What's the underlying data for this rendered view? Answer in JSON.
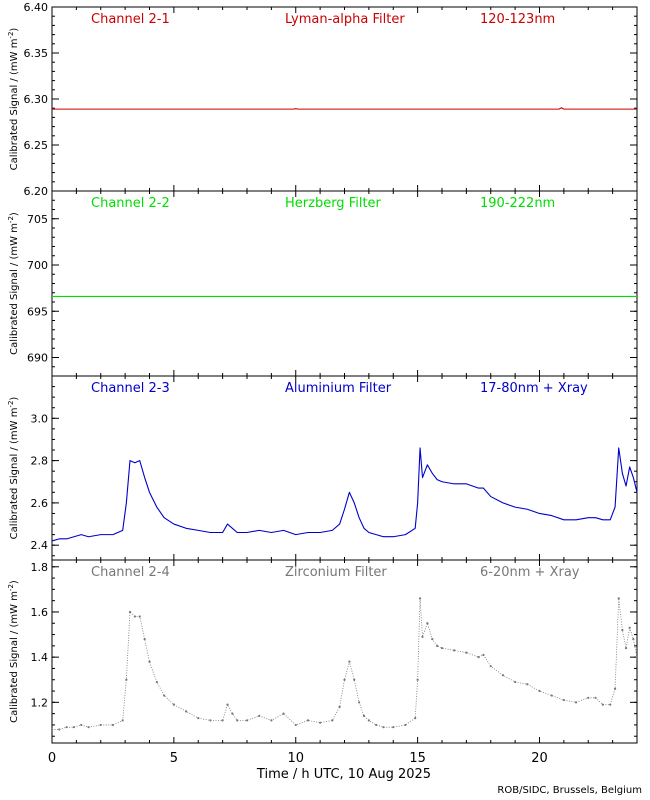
{
  "footer": {
    "credit": "ROB/SIDC, Brussels, Belgium"
  },
  "x_axis": {
    "label": "Time / h UTC, 10 Aug 2025",
    "range": [
      0,
      24
    ],
    "major_ticks": [
      0,
      5,
      10,
      15,
      20
    ],
    "tick_labels": [
      "0",
      "5",
      "10",
      "15",
      "20"
    ]
  },
  "colors": {
    "channel_2_1": "#cc0000",
    "channel_2_2": "#00dd00",
    "channel_2_3": "#0000cc",
    "channel_2_4": "#777777",
    "axes": "#000000"
  },
  "chart_data": [
    {
      "type": "line",
      "channel": "Channel 2-1",
      "filter": "Lyman-alpha Filter",
      "band": "120-123nm",
      "ylabel": "Calibrated Signal / (mW m",
      "ylabel_exp": "-2",
      "ylabel_close": ")",
      "ylim": [
        6.2,
        6.4
      ],
      "yticks": [
        6.2,
        6.25,
        6.3,
        6.35,
        6.4
      ],
      "ytick_labels": [
        "6.20",
        "6.25",
        "6.30",
        "6.35",
        "6.40"
      ],
      "minor_step": 0.01,
      "color": "#cc0000",
      "series": [
        {
          "x": [
            0,
            3,
            6,
            8,
            9.9,
            10,
            10.1,
            12,
            15,
            18,
            20.8,
            20.9,
            21,
            22,
            24
          ],
          "y": [
            6.289,
            6.289,
            6.289,
            6.289,
            6.289,
            6.2895,
            6.289,
            6.289,
            6.289,
            6.289,
            6.289,
            6.2905,
            6.289,
            6.289,
            6.289
          ]
        }
      ]
    },
    {
      "type": "line",
      "channel": "Channel 2-2",
      "filter": "Herzberg Filter",
      "band": "190-222nm",
      "ylabel": "Calibrated Signal / (mW m",
      "ylabel_exp": "-2",
      "ylabel_close": ")",
      "ylim": [
        688,
        708
      ],
      "yticks": [
        690,
        695,
        700,
        705
      ],
      "ytick_labels": [
        "690",
        "695",
        "700",
        "705"
      ],
      "minor_step": 1,
      "color": "#00dd00",
      "series": [
        {
          "x": [
            0,
            4,
            8,
            12,
            16,
            20,
            24
          ],
          "y": [
            696.6,
            696.6,
            696.6,
            696.6,
            696.6,
            696.6,
            696.6
          ]
        }
      ]
    },
    {
      "type": "line",
      "channel": "Channel 2-3",
      "filter": "Aluminium Filter",
      "band": "17-80nm + Xray",
      "ylabel": "Calibrated Signal / (mW m",
      "ylabel_exp": "-2",
      "ylabel_close": ")",
      "ylim": [
        2.33,
        3.2
      ],
      "yticks": [
        2.4,
        2.6,
        2.8,
        3.0
      ],
      "ytick_labels": [
        "2.4",
        "2.6",
        "2.8",
        "3.0"
      ],
      "minor_step": 0.05,
      "color": "#0000cc",
      "series": [
        {
          "x": [
            0,
            0.3,
            0.6,
            0.9,
            1.2,
            1.5,
            2.0,
            2.5,
            2.9,
            3.05,
            3.2,
            3.4,
            3.6,
            3.8,
            4.0,
            4.3,
            4.6,
            5.0,
            5.5,
            6.0,
            6.5,
            7.0,
            7.2,
            7.4,
            7.6,
            8.0,
            8.5,
            9.0,
            9.5,
            10.0,
            10.5,
            11.0,
            11.5,
            11.8,
            12.0,
            12.2,
            12.4,
            12.6,
            12.8,
            13.0,
            13.3,
            13.6,
            14.0,
            14.5,
            14.9,
            15.0,
            15.1,
            15.2,
            15.4,
            15.6,
            15.8,
            16.0,
            16.5,
            17.0,
            17.5,
            17.7,
            18.0,
            18.5,
            19.0,
            19.5,
            20.0,
            20.5,
            21.0,
            21.5,
            22.0,
            22.3,
            22.6,
            22.9,
            23.1,
            23.25,
            23.4,
            23.55,
            23.7,
            23.85,
            24.0
          ],
          "y": [
            2.42,
            2.43,
            2.43,
            2.44,
            2.45,
            2.44,
            2.45,
            2.45,
            2.47,
            2.6,
            2.8,
            2.79,
            2.8,
            2.72,
            2.65,
            2.58,
            2.53,
            2.5,
            2.48,
            2.47,
            2.46,
            2.46,
            2.5,
            2.48,
            2.46,
            2.46,
            2.47,
            2.46,
            2.47,
            2.45,
            2.46,
            2.46,
            2.47,
            2.5,
            2.57,
            2.65,
            2.6,
            2.53,
            2.48,
            2.46,
            2.45,
            2.44,
            2.44,
            2.45,
            2.48,
            2.6,
            2.86,
            2.72,
            2.78,
            2.74,
            2.71,
            2.7,
            2.69,
            2.69,
            2.67,
            2.67,
            2.63,
            2.6,
            2.58,
            2.57,
            2.55,
            2.54,
            2.52,
            2.52,
            2.53,
            2.53,
            2.52,
            2.52,
            2.58,
            2.86,
            2.74,
            2.68,
            2.77,
            2.72,
            2.65
          ]
        }
      ]
    },
    {
      "type": "scatter",
      "channel": "Channel 2-4",
      "filter": "Zirconium Filter",
      "band": "6-20nm + Xray",
      "ylabel": "Calibrated Signal / (mW m",
      "ylabel_exp": "-2",
      "ylabel_close": ")",
      "ylim": [
        1.02,
        1.83
      ],
      "yticks": [
        1.2,
        1.4,
        1.6,
        1.8
      ],
      "ytick_labels": [
        "1.2",
        "1.4",
        "1.6",
        "1.8"
      ],
      "minor_step": 0.05,
      "color": "#777777",
      "series": [
        {
          "x": [
            0,
            0.3,
            0.6,
            0.9,
            1.2,
            1.5,
            2.0,
            2.5,
            2.9,
            3.05,
            3.2,
            3.4,
            3.6,
            3.8,
            4.0,
            4.3,
            4.6,
            5.0,
            5.5,
            6.0,
            6.5,
            7.0,
            7.2,
            7.4,
            7.6,
            8.0,
            8.5,
            9.0,
            9.5,
            10.0,
            10.5,
            11.0,
            11.5,
            11.8,
            12.0,
            12.2,
            12.4,
            12.6,
            12.8,
            13.0,
            13.3,
            13.6,
            14.0,
            14.5,
            14.9,
            15.0,
            15.1,
            15.2,
            15.4,
            15.6,
            15.8,
            16.0,
            16.5,
            17.0,
            17.5,
            17.7,
            18.0,
            18.5,
            19.0,
            19.5,
            20.0,
            20.5,
            21.0,
            21.5,
            22.0,
            22.3,
            22.6,
            22.9,
            23.1,
            23.25,
            23.4,
            23.55,
            23.7,
            23.85,
            24.0
          ],
          "y": [
            1.08,
            1.08,
            1.09,
            1.09,
            1.1,
            1.09,
            1.1,
            1.1,
            1.12,
            1.3,
            1.6,
            1.58,
            1.58,
            1.48,
            1.38,
            1.29,
            1.23,
            1.19,
            1.16,
            1.13,
            1.12,
            1.12,
            1.19,
            1.15,
            1.12,
            1.12,
            1.14,
            1.12,
            1.15,
            1.1,
            1.12,
            1.11,
            1.12,
            1.18,
            1.3,
            1.38,
            1.3,
            1.2,
            1.14,
            1.12,
            1.1,
            1.09,
            1.09,
            1.1,
            1.13,
            1.3,
            1.66,
            1.49,
            1.55,
            1.48,
            1.45,
            1.44,
            1.43,
            1.42,
            1.4,
            1.41,
            1.36,
            1.32,
            1.29,
            1.28,
            1.25,
            1.23,
            1.21,
            1.2,
            1.22,
            1.22,
            1.19,
            1.19,
            1.26,
            1.66,
            1.52,
            1.44,
            1.53,
            1.48,
            1.4
          ]
        }
      ]
    }
  ]
}
